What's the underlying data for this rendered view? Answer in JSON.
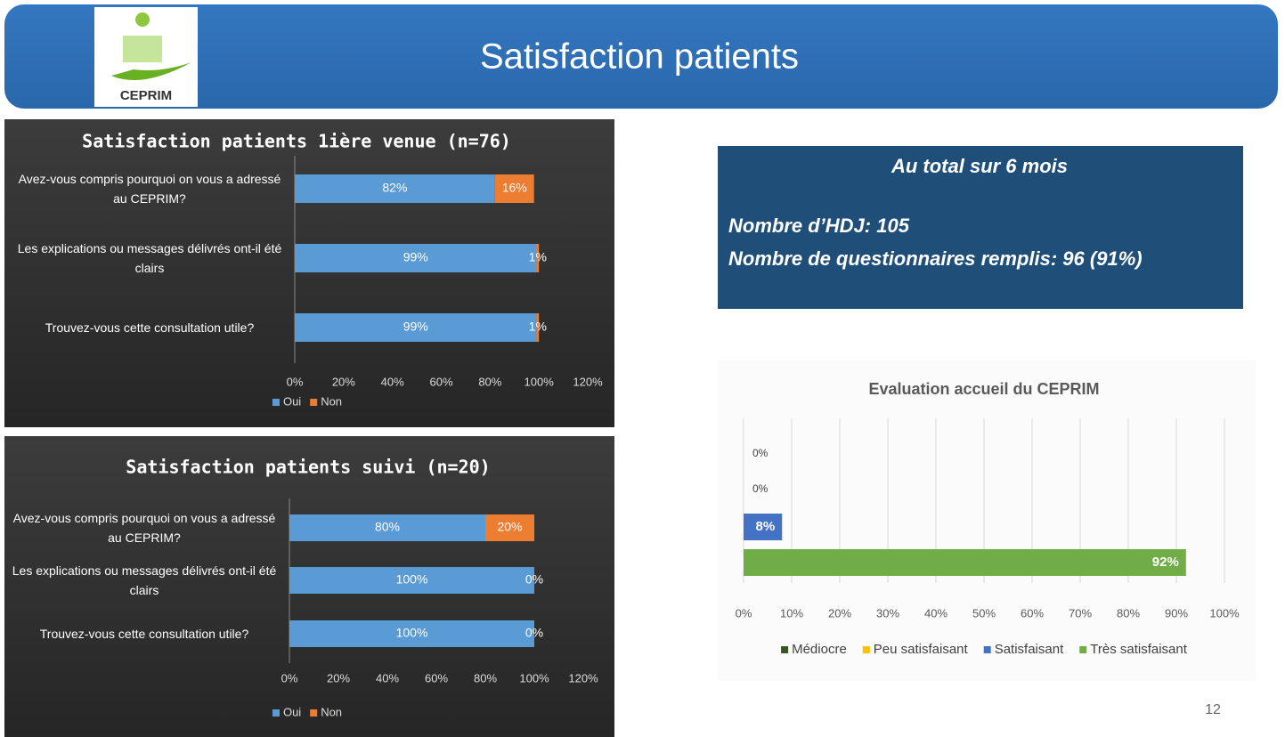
{
  "header": {
    "title": "Satisfaction patients",
    "logo_text": "CEPRIM"
  },
  "summary": {
    "title": "Au total sur 6 mois",
    "lines": [
      "Nombre d’HDJ: 105",
      "Nombre de questionnaires remplis: 96 (91%)"
    ]
  },
  "page_number": 12,
  "chart_data": [
    {
      "type": "bar",
      "orientation": "horizontal",
      "stacked": true,
      "title": "Satisfaction patients 1ière venue (n=76)",
      "categories": [
        "Avez-vous compris pourquoi on vous a adressé au CEPRIM?",
        "Les explications ou messages délivrés ont-il été clairs",
        "Trouvez-vous cette consultation utile?"
      ],
      "series": [
        {
          "name": "Oui",
          "color": "#5b9bd5",
          "values": [
            82,
            99,
            99
          ],
          "value_labels": [
            "82%",
            "99%",
            "99%"
          ]
        },
        {
          "name": "Non",
          "color": "#ed7d31",
          "values": [
            16,
            1,
            1
          ],
          "value_labels": [
            "16%",
            "1%",
            "1%"
          ]
        }
      ],
      "xlim": [
        0,
        120
      ],
      "xticks": [
        {
          "value": 0,
          "label": "0%"
        },
        {
          "value": 20,
          "label": "20%"
        },
        {
          "value": 40,
          "label": "40%"
        },
        {
          "value": 60,
          "label": "60%"
        },
        {
          "value": 80,
          "label": "80%"
        },
        {
          "value": 100,
          "label": "100%"
        },
        {
          "value": 120,
          "label": "120%"
        }
      ],
      "grid": false,
      "legend": "bottom"
    },
    {
      "type": "bar",
      "orientation": "horizontal",
      "stacked": true,
      "title": "Satisfaction patients suivi (n=20)",
      "categories": [
        "Avez-vous compris pourquoi on vous a adressé au CEPRIM?",
        "Les explications ou messages délivrés ont-il été clairs",
        "Trouvez-vous cette consultation utile?"
      ],
      "series": [
        {
          "name": "Oui",
          "color": "#5b9bd5",
          "values": [
            80,
            100,
            100
          ],
          "value_labels": [
            "80%",
            "100%",
            "100%"
          ]
        },
        {
          "name": "Non",
          "color": "#ed7d31",
          "values": [
            20,
            0,
            0
          ],
          "value_labels": [
            "20%",
            "0%",
            "0%"
          ]
        }
      ],
      "xlim": [
        0,
        120
      ],
      "xticks": [
        {
          "value": 0,
          "label": "0%"
        },
        {
          "value": 20,
          "label": "20%"
        },
        {
          "value": 40,
          "label": "40%"
        },
        {
          "value": 60,
          "label": "60%"
        },
        {
          "value": 80,
          "label": "80%"
        },
        {
          "value": 100,
          "label": "100%"
        },
        {
          "value": 120,
          "label": "120%"
        }
      ],
      "grid": false,
      "legend": "bottom"
    },
    {
      "type": "bar",
      "orientation": "horizontal",
      "stacked": false,
      "title": "Evaluation accueil du CEPRIM",
      "series": [
        {
          "name": "Médiocre",
          "color": "#375623",
          "values": [
            0
          ],
          "value_labels": [
            "0%"
          ]
        },
        {
          "name": "Peu satisfaisant",
          "color": "#ffc000",
          "values": [
            0
          ],
          "value_labels": [
            "0%"
          ]
        },
        {
          "name": "Satisfaisant",
          "color": "#4472c4",
          "values": [
            8
          ],
          "value_labels": [
            "8%"
          ]
        },
        {
          "name": "Très satisfaisant",
          "color": "#70ad47",
          "values": [
            92
          ],
          "value_labels": [
            "92%"
          ]
        }
      ],
      "xlim": [
        0,
        100
      ],
      "xticks": [
        {
          "value": 0,
          "label": "0%"
        },
        {
          "value": 10,
          "label": "10%"
        },
        {
          "value": 20,
          "label": "20%"
        },
        {
          "value": 30,
          "label": "30%"
        },
        {
          "value": 40,
          "label": "40%"
        },
        {
          "value": 50,
          "label": "50%"
        },
        {
          "value": 60,
          "label": "60%"
        },
        {
          "value": 70,
          "label": "70%"
        },
        {
          "value": 80,
          "label": "80%"
        },
        {
          "value": 90,
          "label": "90%"
        },
        {
          "value": 100,
          "label": "100%"
        }
      ],
      "grid": true,
      "legend": "bottom"
    }
  ]
}
